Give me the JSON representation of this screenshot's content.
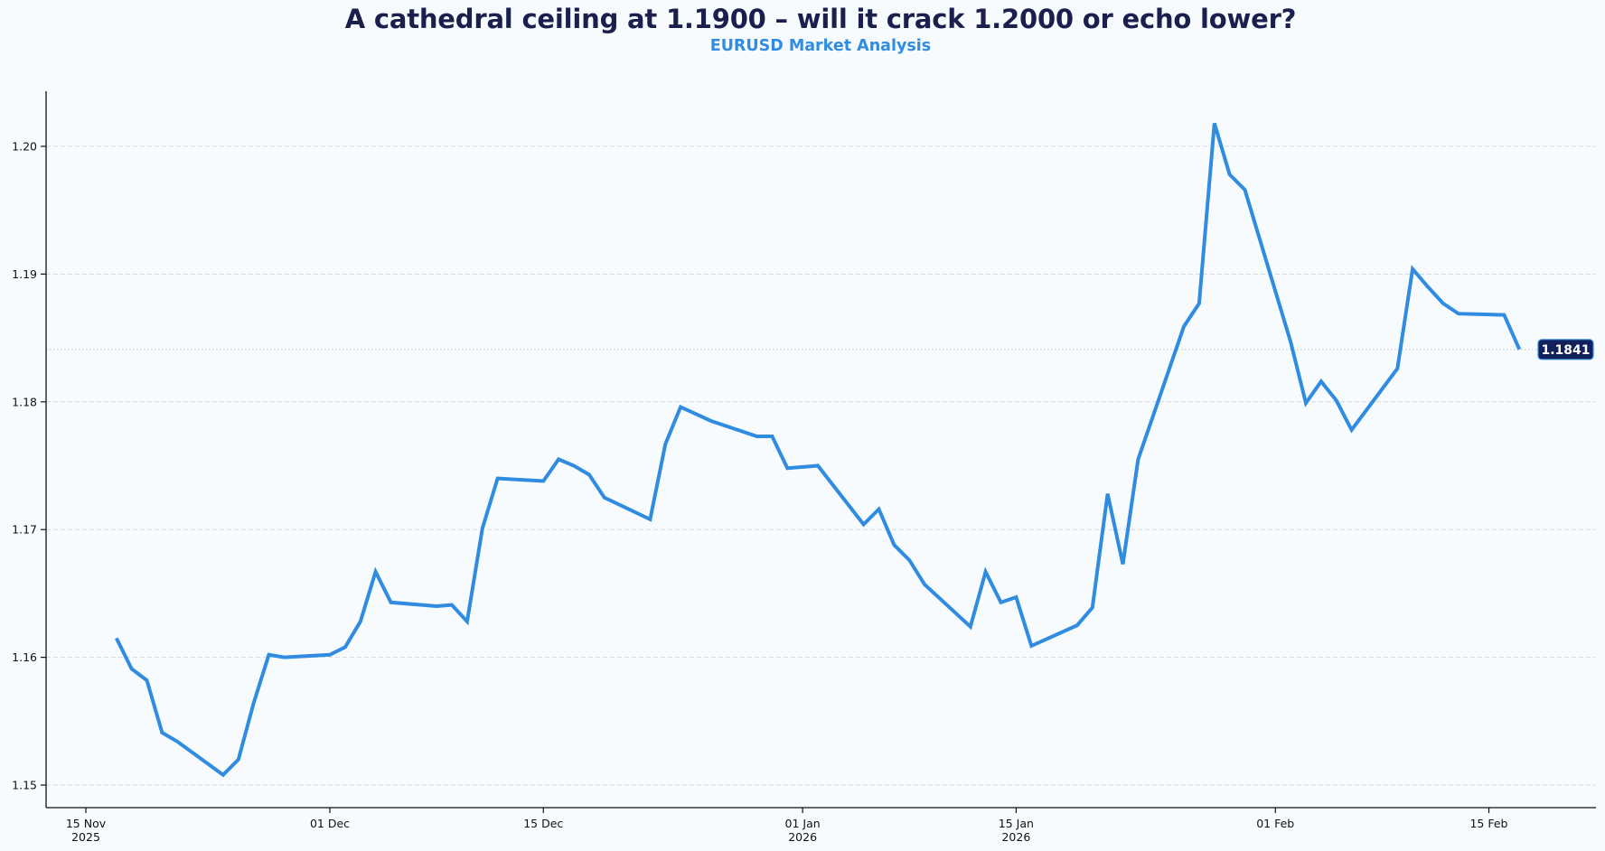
{
  "header": {
    "title": "A cathedral ceiling at 1.1900 – will it crack 1.2000 or echo lower?",
    "subtitle": "EURUSD Market Analysis"
  },
  "colors": {
    "background": "#f8fbfe",
    "line": "#2f8ce0",
    "title": "#1b1f4e",
    "subtitle": "#2f8ce0",
    "badge_bg": "#13205a",
    "badge_border": "#2f8ce0",
    "grid": "#d4d8dd",
    "axis": "#111111"
  },
  "last_price_badge": {
    "label": "1.1841",
    "value": 1.1841
  },
  "chart_data": {
    "type": "line",
    "title": "A cathedral ceiling at 1.1900 – will it crack 1.2000 or echo lower?",
    "subtitle": "EURUSD Market Analysis",
    "xlabel": "",
    "ylabel": "",
    "ylim": [
      1.1474,
      1.2043
    ],
    "yticks": [
      1.15,
      1.16,
      1.17,
      1.18,
      1.19,
      1.2
    ],
    "ytick_labels": [
      "1.15",
      "1.16",
      "1.17",
      "1.18",
      "1.19",
      "1.20"
    ],
    "xticks": [
      {
        "date": "2025-11-15",
        "label": [
          "15 Nov",
          "2025"
        ]
      },
      {
        "date": "2025-12-01",
        "label": [
          "01 Dec"
        ]
      },
      {
        "date": "2025-12-15",
        "label": [
          "15 Dec"
        ]
      },
      {
        "date": "2026-01-01",
        "label": [
          "01 Jan",
          "2026"
        ]
      },
      {
        "date": "2026-01-15",
        "label": [
          "15 Jan",
          "2026"
        ]
      },
      {
        "date": "2026-02-01",
        "label": [
          "01 Feb"
        ]
      },
      {
        "date": "2026-02-15",
        "label": [
          "15 Feb"
        ]
      }
    ],
    "grid": "horizontal dashed",
    "reference_line": {
      "value": 1.1841,
      "style": "dotted"
    },
    "series": [
      {
        "name": "EURUSD",
        "x": [
          "2025-11-17",
          "2025-11-18",
          "2025-11-19",
          "2025-11-20",
          "2025-11-21",
          "2025-11-24",
          "2025-11-25",
          "2025-11-26",
          "2025-11-27",
          "2025-11-28",
          "2025-12-01",
          "2025-12-02",
          "2025-12-03",
          "2025-12-04",
          "2025-12-05",
          "2025-12-08",
          "2025-12-09",
          "2025-12-10",
          "2025-12-11",
          "2025-12-12",
          "2025-12-15",
          "2025-12-16",
          "2025-12-17",
          "2025-12-18",
          "2025-12-19",
          "2025-12-22",
          "2025-12-23",
          "2025-12-24",
          "2025-12-26",
          "2025-12-29",
          "2025-12-30",
          "2025-12-31",
          "2026-01-02",
          "2026-01-05",
          "2026-01-06",
          "2026-01-07",
          "2026-01-08",
          "2026-01-09",
          "2026-01-12",
          "2026-01-13",
          "2026-01-14",
          "2026-01-15",
          "2026-01-16",
          "2026-01-19",
          "2026-01-20",
          "2026-01-21",
          "2026-01-22",
          "2026-01-23",
          "2026-01-26",
          "2026-01-27",
          "2026-01-28",
          "2026-01-29",
          "2026-01-30",
          "2026-02-02",
          "2026-02-03",
          "2026-02-04",
          "2026-02-05",
          "2026-02-06",
          "2026-02-09",
          "2026-02-10",
          "2026-02-11",
          "2026-02-12",
          "2026-02-13",
          "2026-02-16",
          "2026-02-17"
        ],
        "values": [
          1.1615,
          1.1591,
          1.1582,
          1.1541,
          1.1534,
          1.1508,
          1.152,
          1.1564,
          1.1602,
          1.16,
          1.1602,
          1.1608,
          1.1628,
          1.1667,
          1.1643,
          1.164,
          1.1641,
          1.1628,
          1.1701,
          1.174,
          1.1738,
          1.1755,
          1.175,
          1.1743,
          1.1725,
          1.1708,
          1.1767,
          1.1796,
          1.1785,
          1.1773,
          1.1773,
          1.1748,
          1.175,
          1.1704,
          1.1716,
          1.1688,
          1.1676,
          1.1657,
          1.1624,
          1.1667,
          1.1643,
          1.1647,
          1.1609,
          1.1625,
          1.1639,
          1.1728,
          1.1673,
          1.1755,
          1.1859,
          1.1877,
          1.2018,
          1.1978,
          1.1966,
          1.1847,
          1.1799,
          1.1816,
          1.1801,
          1.1778,
          1.1826,
          1.1904,
          1.189,
          1.1877,
          1.1869,
          1.1868,
          1.1841
        ]
      }
    ]
  }
}
